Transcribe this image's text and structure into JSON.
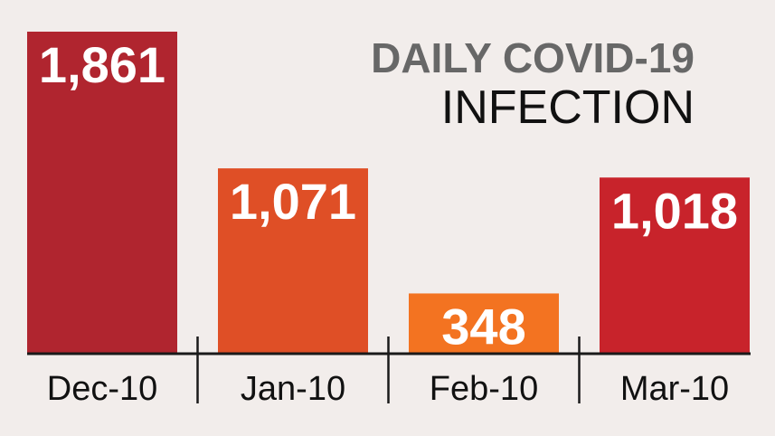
{
  "chart_data": {
    "type": "bar",
    "title_line1": "DAILY COVID-19",
    "title_line2": "INFECTION",
    "categories": [
      "Dec-10",
      "Jan-10",
      "Feb-10",
      "Mar-10"
    ],
    "values": [
      1861,
      1071,
      348,
      1018
    ],
    "value_labels": [
      "1,861",
      "1,071",
      "348",
      "1,018"
    ],
    "colors": [
      "#b0252f",
      "#df4f26",
      "#f37321",
      "#c8232b"
    ],
    "xlabel": "",
    "ylabel": "",
    "ylim": [
      0,
      1861
    ],
    "grid": false,
    "legend": "none"
  }
}
